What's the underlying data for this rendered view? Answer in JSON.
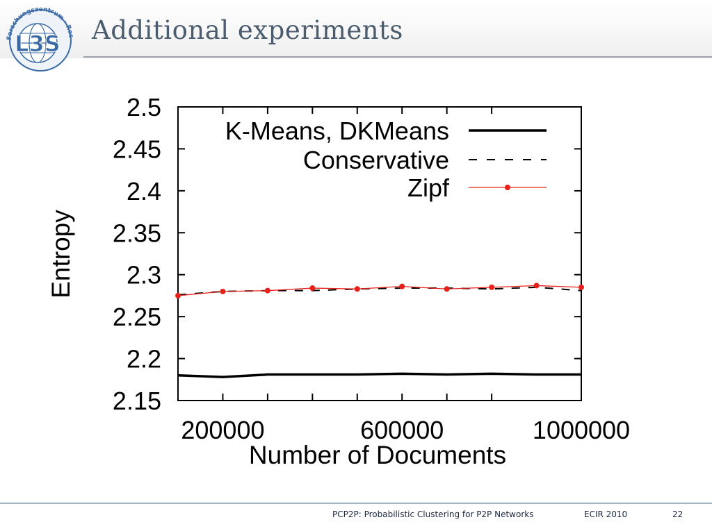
{
  "slide": {
    "title": "Additional experiments",
    "logo": {
      "wordmark": "L3S",
      "ring_text": "Forschungszentrum · Research Center",
      "color": "#3a6aa6"
    }
  },
  "footer": {
    "talk_title": "PCP2P: Probabilistic Clustering for P2P Networks",
    "conference": "ECIR 2010",
    "page_number": "22"
  },
  "chart_data": {
    "type": "line",
    "title": "",
    "xlabel": "Number of Documents",
    "ylabel": "Entropy",
    "xlim": [
      100000,
      1000000
    ],
    "ylim": [
      2.15,
      2.5
    ],
    "xticks": [
      200000,
      600000,
      1000000
    ],
    "xtick_labels": [
      "200000",
      "600000",
      "1000000"
    ],
    "yticks": [
      2.15,
      2.2,
      2.25,
      2.3,
      2.35,
      2.4,
      2.45,
      2.5
    ],
    "ytick_labels": [
      "2.15",
      "2.2",
      "2.25",
      "2.3",
      "2.35",
      "2.4",
      "2.45",
      "2.5"
    ],
    "grid": false,
    "legend_position": "top-right",
    "series": [
      {
        "name": "K-Means, DKMeans",
        "style": "solid",
        "color": "#000000",
        "x": [
          100000,
          200000,
          300000,
          400000,
          500000,
          600000,
          700000,
          800000,
          900000,
          1000000
        ],
        "y": [
          2.18,
          2.178,
          2.181,
          2.181,
          2.181,
          2.182,
          2.181,
          2.182,
          2.181,
          2.181
        ]
      },
      {
        "name": "Conservative",
        "style": "dashed",
        "color": "#000000",
        "x": [
          100000,
          200000,
          300000,
          400000,
          500000,
          600000,
          700000,
          800000,
          900000,
          1000000
        ],
        "y": [
          2.276,
          2.28,
          2.281,
          2.281,
          2.283,
          2.284,
          2.284,
          2.283,
          2.285,
          2.281
        ]
      },
      {
        "name": "Zipf",
        "style": "points",
        "color": "#e8201a",
        "x": [
          100000,
          200000,
          300000,
          400000,
          500000,
          600000,
          700000,
          800000,
          900000,
          1000000
        ],
        "y": [
          2.275,
          2.28,
          2.281,
          2.284,
          2.283,
          2.286,
          2.283,
          2.285,
          2.287,
          2.285
        ]
      }
    ]
  }
}
